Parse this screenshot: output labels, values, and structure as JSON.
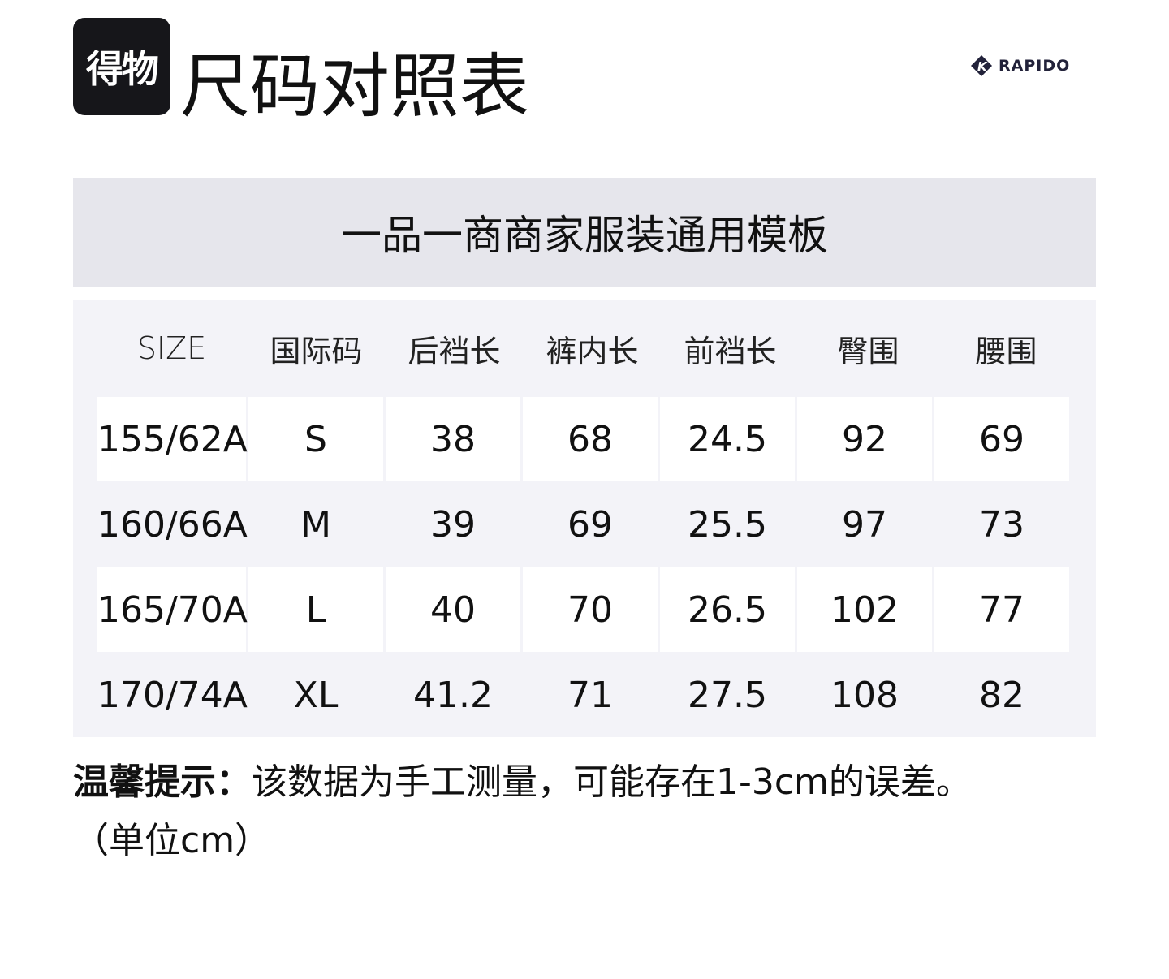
{
  "logo": "得物",
  "title": "尺码对照表",
  "brand": "RAPIDO",
  "template_name": "一品一商商家服装通用模板",
  "table": {
    "headers": [
      "SIZE",
      "国际码",
      "后裆长",
      "裤内长",
      "前裆长",
      "臀围",
      "腰围"
    ],
    "rows": [
      [
        "155/62A",
        "S",
        "38",
        "68",
        "24.5",
        "92",
        "69"
      ],
      [
        "160/66A",
        "M",
        "39",
        "69",
        "25.5",
        "97",
        "73"
      ],
      [
        "165/70A",
        "L",
        "40",
        "70",
        "26.5",
        "102",
        "77"
      ],
      [
        "170/74A",
        "XL",
        "41.2",
        "71",
        "27.5",
        "108",
        "82"
      ]
    ]
  },
  "note": {
    "label": "温馨提示：",
    "text": "该数据为手工测量，可能存在1-3cm的误差。",
    "unit": "（单位cm）"
  }
}
